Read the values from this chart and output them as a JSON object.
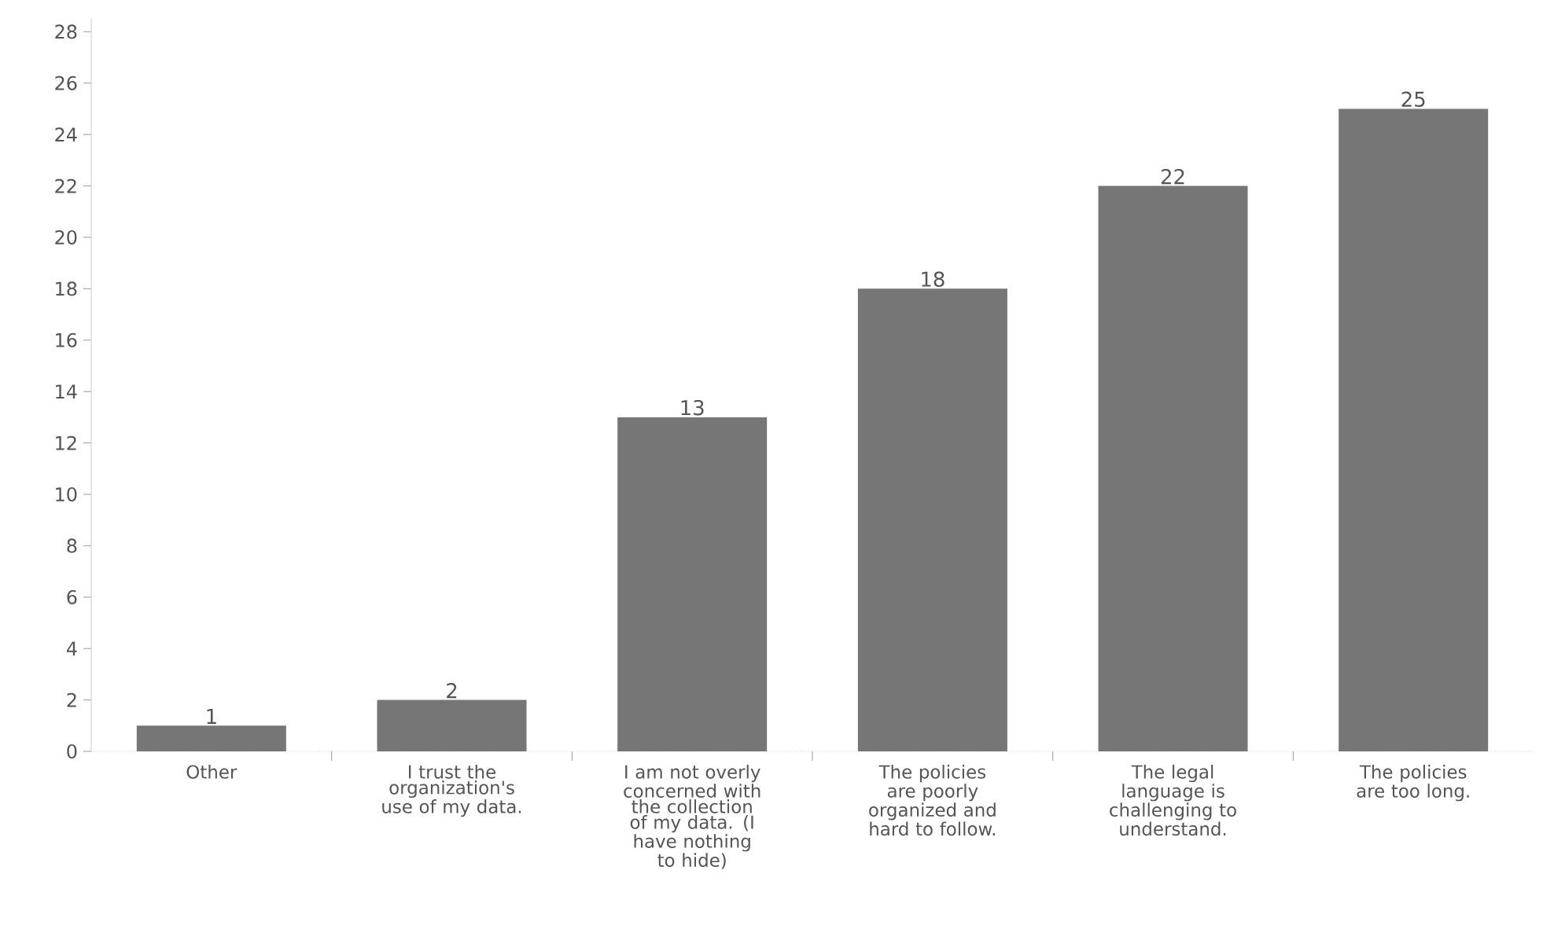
{
  "chart_data": {
    "type": "bar",
    "categories": [
      "Other",
      "I trust the organization's use of my data.",
      "I am not overly concerned with the collection of my data. (I have nothing to hide)",
      "The policies are poorly organized and hard to follow.",
      "The legal language is challenging to understand.",
      "The policies are too long."
    ],
    "values": [
      1,
      2,
      13,
      18,
      22,
      25
    ],
    "color": "#767676",
    "data_labels": true,
    "ylim": [
      0,
      28.5
    ],
    "yticks": [
      0,
      2,
      4,
      6,
      8,
      10,
      12,
      14,
      16,
      18,
      20,
      22,
      24,
      26,
      28
    ],
    "grid": false
  }
}
